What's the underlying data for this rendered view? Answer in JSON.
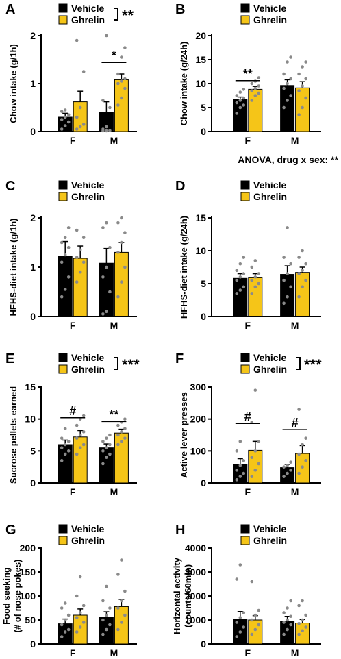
{
  "figure": {
    "anova_note": "ANOVA, drug x sex: **"
  },
  "colors": {
    "vehicle": "#000000",
    "ghrelin": "#F5C518",
    "dots": "#8a8a8a"
  },
  "chart_data": [
    {
      "panel": "A",
      "type": "bar",
      "ylabel": "Chow intake (g/1h)",
      "ylim": [
        0,
        2
      ],
      "yticks": [
        0,
        1,
        2
      ],
      "categories": [
        "F",
        "M"
      ],
      "legend": [
        "Vehicle",
        "Ghrelin"
      ],
      "legend_sig": "**",
      "series": [
        {
          "name": "Vehicle",
          "values": [
            0.3,
            0.4
          ],
          "errors": [
            0.08,
            0.22
          ],
          "points": [
            [
              0.05,
              0.12,
              0.2,
              0.25,
              0.3,
              0.35,
              0.42,
              0.45
            ],
            [
              0,
              0,
              0.02,
              0.05,
              0.1,
              0.5,
              0.65,
              2.0
            ]
          ]
        },
        {
          "name": "Ghrelin",
          "values": [
            0.62,
            1.08
          ],
          "errors": [
            0.22,
            0.12
          ],
          "points": [
            [
              0.05,
              0.1,
              0.15,
              0.3,
              0.5,
              1.25,
              1.9
            ],
            [
              0.55,
              0.7,
              0.9,
              1.0,
              1.05,
              1.1,
              1.2,
              1.55,
              1.75
            ]
          ]
        }
      ],
      "sig": [
        {
          "category": "M",
          "label": "*"
        }
      ]
    },
    {
      "panel": "B",
      "type": "bar",
      "ylabel": "Chow intake (g/24h)",
      "ylim": [
        0,
        20
      ],
      "yticks": [
        0,
        5,
        10,
        15,
        20
      ],
      "categories": [
        "F",
        "M"
      ],
      "legend": [
        "Vehicle",
        "Ghrelin"
      ],
      "series": [
        {
          "name": "Vehicle",
          "values": [
            6.7,
            9.6
          ],
          "errors": [
            0.5,
            1.2
          ],
          "points": [
            [
              3.8,
              5,
              5.5,
              6,
              6.5,
              7,
              7.5,
              8.2,
              8.8
            ],
            [
              5,
              6.5,
              7.5,
              9,
              10,
              11,
              12,
              14.5,
              15.5
            ]
          ]
        },
        {
          "name": "Ghrelin",
          "values": [
            8.8,
            9.1
          ],
          "errors": [
            0.6,
            1.3
          ],
          "points": [
            [
              6.5,
              7.5,
              8,
              8.5,
              9,
              9.5,
              10,
              10.5,
              11.2
            ],
            [
              3.5,
              5,
              7,
              8.5,
              9.5,
              11,
              12,
              13.5,
              14.5
            ]
          ]
        }
      ],
      "sig": [
        {
          "category": "F",
          "label": "**"
        }
      ]
    },
    {
      "panel": "C",
      "type": "bar",
      "ylabel": "HFHS-diet intake (g/1h)",
      "ylim": [
        0,
        2
      ],
      "yticks": [
        0,
        1,
        2
      ],
      "categories": [
        "F",
        "M"
      ],
      "legend": [
        "Vehicle",
        "Ghrelin"
      ],
      "series": [
        {
          "name": "Vehicle",
          "values": [
            1.22,
            1.08
          ],
          "errors": [
            0.3,
            0.3
          ],
          "points": [
            [
              0.4,
              0.55,
              0.8,
              1.1,
              1.25,
              1.4,
              1.5,
              1.6,
              1.8
            ],
            [
              0.05,
              0.1,
              0.5,
              0.8,
              1.0,
              1.4,
              1.8,
              1.9
            ]
          ]
        },
        {
          "name": "Ghrelin",
          "values": [
            1.18,
            1.3
          ],
          "errors": [
            0.25,
            0.2
          ],
          "points": [
            [
              0.7,
              0.9,
              1.1,
              1.2,
              1.35,
              1.6,
              1.75
            ],
            [
              0.4,
              0.7,
              1.0,
              1.3,
              1.5,
              1.7,
              1.9,
              2.0
            ]
          ]
        }
      ],
      "sig": []
    },
    {
      "panel": "D",
      "type": "bar",
      "ylabel": "HFHS-diet intake (g/24h)",
      "ylim": [
        0,
        15
      ],
      "yticks": [
        0,
        5,
        10,
        15
      ],
      "categories": [
        "F",
        "M"
      ],
      "legend": [
        "Vehicle",
        "Ghrelin"
      ],
      "series": [
        {
          "name": "Vehicle",
          "values": [
            5.8,
            6.4
          ],
          "errors": [
            0.7,
            1.3
          ],
          "points": [
            [
              3.5,
              4,
              4.5,
              5.5,
              6,
              6.5,
              7,
              8,
              9
            ],
            [
              2,
              3,
              4.5,
              5.5,
              6.5,
              8,
              9,
              13.5
            ]
          ]
        },
        {
          "name": "Ghrelin",
          "values": [
            5.9,
            6.7
          ],
          "errors": [
            0.6,
            0.8
          ],
          "points": [
            [
              3.5,
              4.5,
              5,
              5.5,
              6,
              6.5,
              7.5,
              8.5
            ],
            [
              3,
              4.5,
              5.5,
              6.5,
              7,
              8,
              9,
              10
            ]
          ]
        }
      ],
      "sig": []
    },
    {
      "panel": "E",
      "type": "bar",
      "ylabel": "Sucrose pellets earned",
      "ylim": [
        0,
        15
      ],
      "yticks": [
        0,
        5,
        10,
        15
      ],
      "categories": [
        "F",
        "M"
      ],
      "legend": [
        "Vehicle",
        "Ghrelin"
      ],
      "legend_sig": "***",
      "series": [
        {
          "name": "Vehicle",
          "values": [
            6.0,
            5.5
          ],
          "errors": [
            0.7,
            0.6
          ],
          "points": [
            [
              3.5,
              4.5,
              5,
              5.5,
              6,
              6.5,
              7,
              8.5
            ],
            [
              3,
              4,
              4.5,
              5,
              5.5,
              6,
              6.5,
              7,
              7.5
            ]
          ]
        },
        {
          "name": "Ghrelin",
          "values": [
            7.2,
            7.8
          ],
          "errors": [
            1.0,
            0.6
          ],
          "points": [
            [
              4.5,
              5.5,
              6,
              7,
              7.5,
              8,
              9,
              10,
              10.5
            ],
            [
              6,
              6.5,
              7,
              7.5,
              8,
              8.5,
              9,
              9.5,
              10
            ]
          ]
        }
      ],
      "sig": [
        {
          "category": "F",
          "label": "#"
        },
        {
          "category": "M",
          "label": "**"
        }
      ]
    },
    {
      "panel": "F",
      "type": "bar",
      "ylabel": "Active lever presses",
      "ylim": [
        0,
        300
      ],
      "yticks": [
        0,
        100,
        200,
        300
      ],
      "categories": [
        "F",
        "M"
      ],
      "legend": [
        "Vehicle",
        "Ghrelin"
      ],
      "legend_sig": "***",
      "series": [
        {
          "name": "Vehicle",
          "values": [
            58,
            48
          ],
          "errors": [
            18,
            10
          ],
          "points": [
            [
              10,
              20,
              30,
              40,
              55,
              70,
              100,
              130
            ],
            [
              20,
              30,
              40,
              50,
              55,
              65
            ]
          ]
        },
        {
          "name": "Ghrelin",
          "values": [
            102,
            92
          ],
          "errors": [
            28,
            25
          ],
          "points": [
            [
              20,
              40,
              60,
              80,
              100,
              130,
              190,
              290
            ],
            [
              30,
              50,
              70,
              90,
              120,
              140,
              230
            ]
          ]
        }
      ],
      "sig": [
        {
          "category": "F",
          "label": "#"
        },
        {
          "category": "M",
          "label": "#"
        }
      ]
    },
    {
      "panel": "G",
      "type": "bar",
      "ylabel": "Food seeking\n(# of nose pokes)",
      "ylim": [
        0,
        200
      ],
      "yticks": [
        0,
        50,
        100,
        150,
        200
      ],
      "categories": [
        "F",
        "M"
      ],
      "legend": [
        "Vehicle",
        "Ghrelin"
      ],
      "series": [
        {
          "name": "Vehicle",
          "values": [
            42,
            55
          ],
          "errors": [
            10,
            12
          ],
          "points": [
            [
              15,
              25,
              30,
              40,
              50,
              60,
              75,
              85
            ],
            [
              20,
              30,
              40,
              50,
              60,
              75,
              90,
              120
            ]
          ]
        },
        {
          "name": "Ghrelin",
          "values": [
            60,
            78
          ],
          "errors": [
            13,
            15
          ],
          "points": [
            [
              25,
              35,
              45,
              55,
              65,
              80,
              100,
              140
            ],
            [
              30,
              45,
              60,
              75,
              90,
              110,
              145,
              175
            ]
          ]
        }
      ],
      "sig": []
    },
    {
      "panel": "H",
      "type": "bar",
      "ylabel": "Horizontal activity\n(counts/60min)",
      "ylim": [
        0,
        4000
      ],
      "yticks": [
        0,
        1000,
        2000,
        3000,
        4000
      ],
      "categories": [
        "F",
        "M"
      ],
      "legend": [
        "Vehicle",
        "Ghrelin"
      ],
      "series": [
        {
          "name": "Vehicle",
          "values": [
            1020,
            950
          ],
          "errors": [
            330,
            200
          ],
          "points": [
            [
              300,
              500,
              700,
              900,
              1100,
              1300,
              2700,
              3300
            ],
            [
              400,
              600,
              800,
              900,
              1000,
              1150,
              1300,
              1500,
              1800
            ]
          ]
        },
        {
          "name": "Ghrelin",
          "values": [
            1000,
            870
          ],
          "errors": [
            180,
            150
          ],
          "points": [
            [
              400,
              600,
              800,
              1000,
              1200,
              1400,
              2600
            ],
            [
              400,
              550,
              700,
              850,
              1000,
              1200,
              1600,
              1800
            ]
          ]
        }
      ],
      "sig": []
    }
  ]
}
